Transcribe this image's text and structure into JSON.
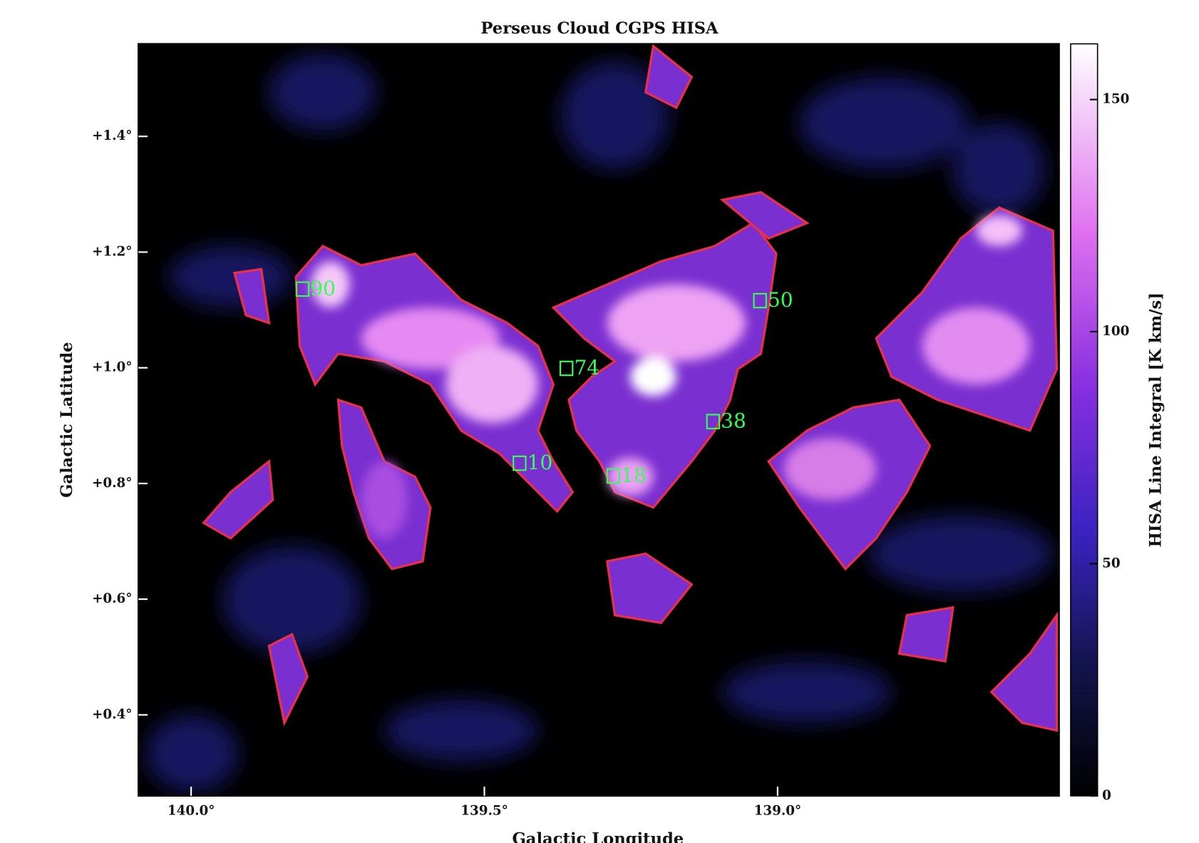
{
  "chart_data": {
    "type": "image",
    "title": "Perseus Cloud CGPS HISA",
    "x_label": "Galactic Longitude",
    "y_label": "Galactic Latitude",
    "colorbar_label": "HISA Line Integral [K km/s]",
    "xlim": [
      140.09,
      138.52
    ],
    "ylim": [
      0.26,
      1.56
    ],
    "xticks": [
      {
        "value": 140.0,
        "label": "140.0°"
      },
      {
        "value": 139.5,
        "label": "139.5°"
      },
      {
        "value": 139.0,
        "label": "139.0°"
      }
    ],
    "yticks": [
      {
        "value": 0.4,
        "label": "+0.4°"
      },
      {
        "value": 0.6,
        "label": "+0.6°"
      },
      {
        "value": 0.8,
        "label": "+0.8°"
      },
      {
        "value": 1.0,
        "label": "+1.0°"
      },
      {
        "value": 1.2,
        "label": "+1.2°"
      },
      {
        "value": 1.4,
        "label": "+1.4°"
      }
    ],
    "clim": [
      0,
      162
    ],
    "cticks": [
      0,
      50,
      100,
      150
    ],
    "markers": {
      "color": "#33ff55",
      "labels": [
        "90",
        "74",
        "50",
        "38",
        "10",
        "18"
      ],
      "x": [
        139.81,
        139.36,
        139.03,
        139.11,
        139.44,
        139.28
      ],
      "y": [
        1.136,
        0.999,
        1.116,
        0.907,
        0.835,
        0.813
      ]
    }
  }
}
